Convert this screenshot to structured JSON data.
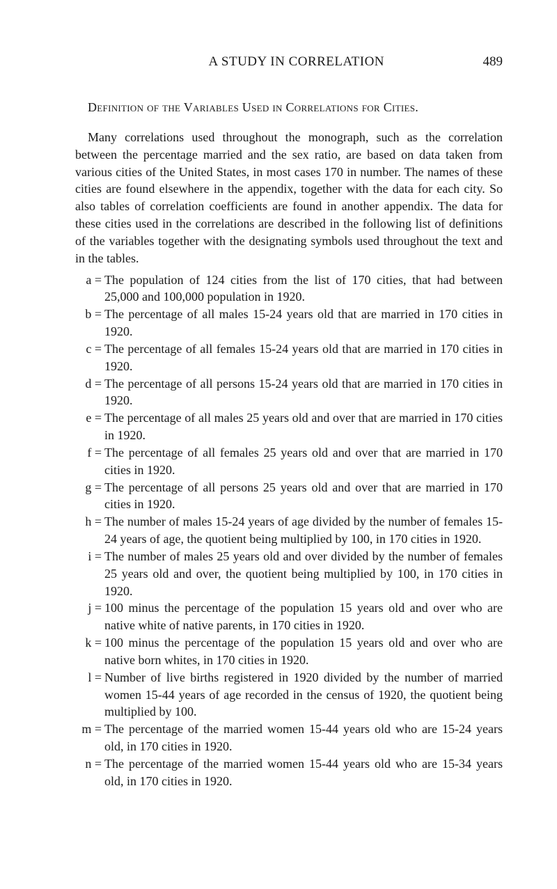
{
  "header": {
    "running_head": "A STUDY IN CORRELATION",
    "page_number": "489"
  },
  "section_title": "Definition of the Variables Used in Correlations for Cities.",
  "intro": "Many correlations used throughout the monograph, such as the correlation between the percentage married and the sex ratio, are based on data taken from various cities of the United States, in most cases 170 in number. The names of these cities are found elsewhere in the appendix, together with the data for each city. So also tables of correlation coefficients are found in another appendix. The data for these cities used in the correlations are described in the following list of definitions of the variables together with the designating symbols used throughout the text and in the tables.",
  "definitions": [
    {
      "symbol": "a =",
      "text": "The population of 124 cities from the list of 170 cities, that had between 25,000 and 100,000 population in 1920."
    },
    {
      "symbol": "b =",
      "text": "The percentage of all males 15-24 years old that are married in 170 cities in 1920."
    },
    {
      "symbol": "c =",
      "text": "The percentage of all females 15-24 years old that are married in 170 cities in 1920."
    },
    {
      "symbol": "d =",
      "text": "The percentage of all persons 15-24 years old that are married in 170 cities in 1920."
    },
    {
      "symbol": "e =",
      "text": "The percentage of all males 25 years old and over that are married in 170 cities in 1920."
    },
    {
      "symbol": "f =",
      "text": "The percentage of all females 25 years old and over that are married in 170 cities in 1920."
    },
    {
      "symbol": "g =",
      "text": "The percentage of all persons 25 years old and over that are married in 170 cities in 1920."
    },
    {
      "symbol": "h =",
      "text": "The number of males 15-24 years of age divided by the number of females 15-24 years of age, the quotient being multiplied by 100, in 170 cities in 1920."
    },
    {
      "symbol": "i =",
      "text": "The number of males 25 years old and over divided by the number of females 25 years old and over, the quotient being multiplied by 100, in 170 cities in 1920."
    },
    {
      "symbol": "j =",
      "text": "100 minus the percentage of the population 15 years old and over who are native white of native parents, in 170 cities in 1920."
    },
    {
      "symbol": "k =",
      "text": "100 minus the percentage of the population 15 years old and over who are native born whites, in 170 cities in 1920."
    },
    {
      "symbol": "l =",
      "text": "Number of live births registered in 1920 divided by the number of married women 15-44 years of age recorded in the census of 1920, the quotient being multiplied by 100."
    },
    {
      "symbol": "m =",
      "text": "The percentage of the married women 15-44 years old who are 15-24 years old, in 170 cities in 1920."
    },
    {
      "symbol": "n =",
      "text": "The percentage of the married women 15-44 years old who are 15-34 years old, in 170 cities in 1920."
    }
  ]
}
